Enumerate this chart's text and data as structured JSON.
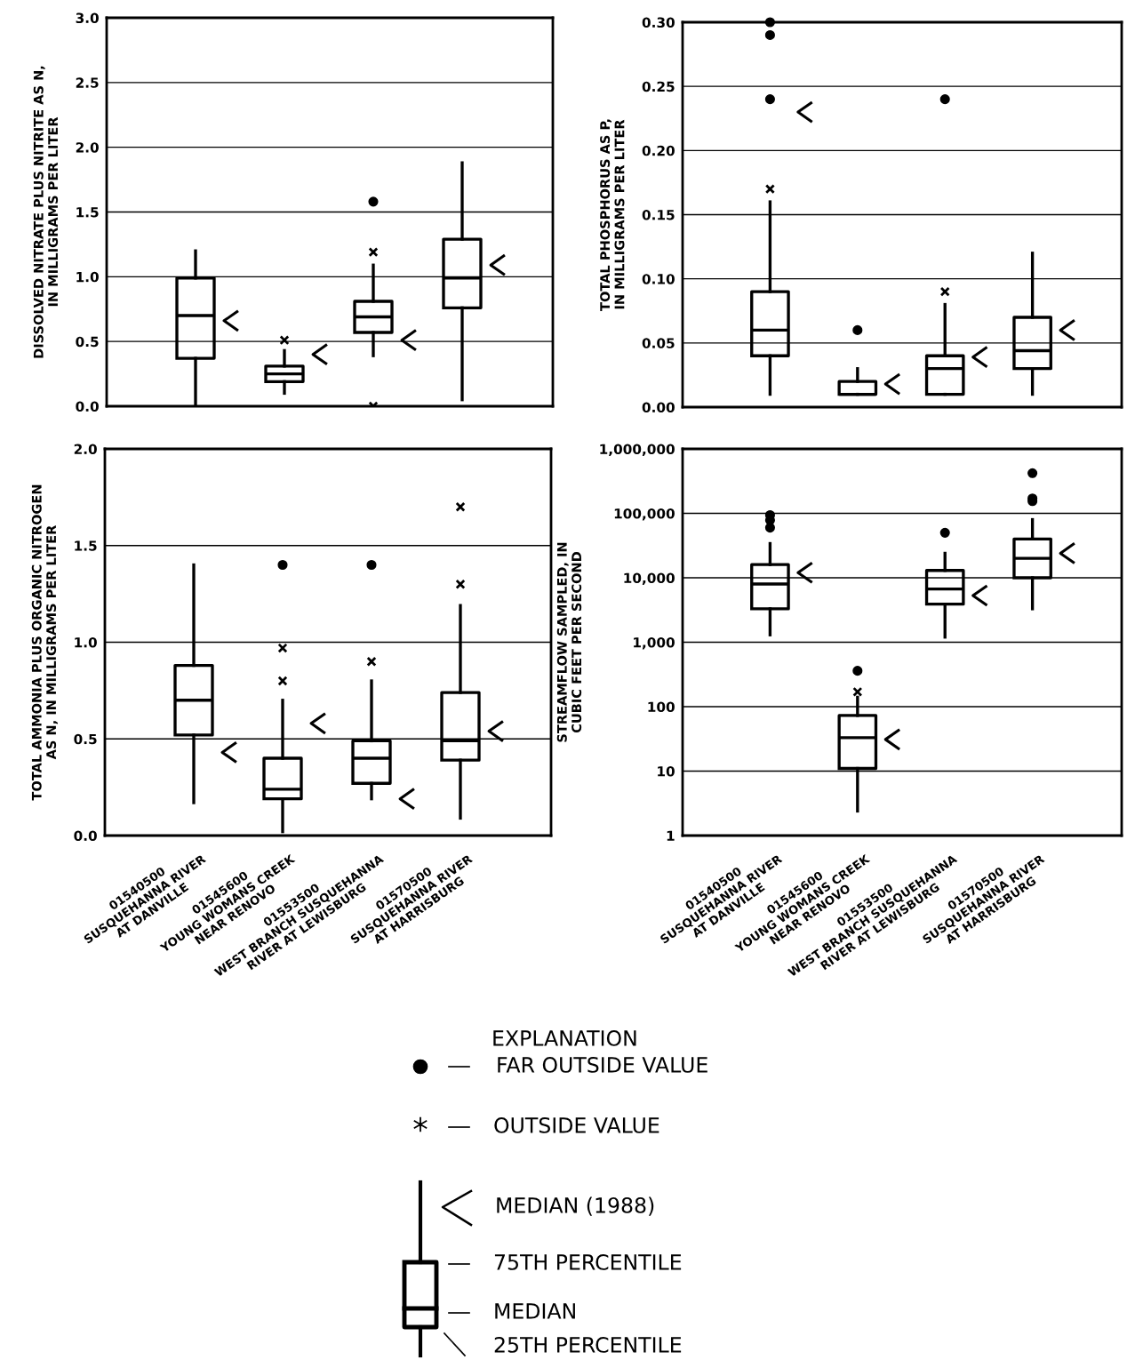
{
  "chart_data": [
    {
      "type": "box",
      "ylabel": "DISSOLVED NITRATE PLUS NITRITE AS N,\nIN MILLIGRAMS PER LITER",
      "categories": [
        "01540500\nSUSQUEHANNA RIVER\nAT DANVILLE",
        "01545600\nYOUNG WOMANS CREEK\nNEAR RENOVO",
        "01553500\nWEST BRANCH SUSQUEHANNA\nRIVER AT LEWISBURG",
        "01570500\nSUSQUEHANNA RIVER\nAT HARRISBURG"
      ],
      "tick_labels": "y",
      "grid": "y",
      "ylim": [
        0,
        3
      ],
      "yticks": [
        {
          "value": 0,
          "label": "0.0"
        },
        0.5,
        {
          "value": 1,
          "label": "1.0"
        },
        1.5,
        {
          "value": 2,
          "label": "2.0"
        },
        2.5,
        {
          "value": 3,
          "label": "3.0"
        }
      ],
      "boxes": [
        {
          "low": 0.0,
          "q1": 0.37,
          "median": 0.7,
          "q3": 0.99,
          "high": 1.2
        },
        {
          "low": 0.1,
          "q1": 0.19,
          "median": 0.25,
          "q3": 0.31,
          "high": 0.43,
          "outliers": [
            0.51
          ]
        },
        {
          "low": 0.39,
          "q1": 0.57,
          "median": 0.69,
          "q3": 0.81,
          "high": 1.09,
          "outliers": [
            1.19,
            0.0
          ]
        },
        {
          "low": 0.05,
          "q1": 0.76,
          "median": 0.99,
          "q3": 1.29,
          "high": 1.88
        }
      ],
      "series": [
        {
          "type": "scatter",
          "marker": "circle",
          "color": "#000000",
          "x": [
            "01553500\nWEST BRANCH SUSQUEHANNA\nRIVER AT LEWISBURG"
          ],
          "values": [
            1.58
          ]
        },
        {
          "type": "scatter",
          "marker": "cross",
          "color": "#000000",
          "x": [
            "01540500\nSUSQUEHANNA RIVER\nAT DANVILLE",
            "01545600\nYOUNG WOMANS CREEK\nNEAR RENOVO",
            "01553500\nWEST BRANCH SUSQUEHANNA\nRIVER AT LEWISBURG",
            "01570500\nSUSQUEHANNA RIVER\nAT HARRISBURG"
          ],
          "values": [
            0.66,
            0.4,
            0.51,
            1.09
          ]
        }
      ]
    },
    {
      "type": "box",
      "ylabel": "TOTAL PHOSPHORUS AS P,\nIN MILLIGRAMS PER LITER",
      "categories": [
        "01540500\nSUSQUEHANNA RIVER\nAT DANVILLE",
        "01545600\nYOUNG WOMANS CREEK\nNEAR RENOVO",
        "01553500\nWEST BRANCH SUSQUEHANNA\nRIVER AT LEWISBURG",
        "01570500\nSUSQUEHANNA RIVER\nAT HARRISBURG"
      ],
      "tick_labels": "y",
      "grid": "y",
      "ylim": [
        0,
        0.3
      ],
      "yticks": [
        {
          "value": 0,
          "label": "0.00"
        },
        0.05,
        {
          "value": 0.1,
          "label": "0.10"
        },
        0.15,
        {
          "value": 0.2,
          "label": "0.20"
        },
        0.25,
        {
          "value": 0.3,
          "label": "0.30"
        }
      ],
      "boxes": [
        {
          "low": 0.01,
          "q1": 0.04,
          "median": 0.06,
          "q3": 0.09,
          "high": 0.16,
          "outliers": [
            0.17
          ]
        },
        {
          "low": 0.01,
          "q1": 0.01,
          "median": 0.01,
          "q3": 0.02,
          "high": 0.03
        },
        {
          "low": 0.01,
          "q1": 0.01,
          "median": 0.03,
          "q3": 0.04,
          "high": 0.08,
          "outliers": [
            0.09
          ]
        },
        {
          "low": 0.01,
          "q1": 0.03,
          "median": 0.044,
          "q3": 0.07,
          "high": 0.12
        }
      ],
      "series": [
        {
          "type": "scatter",
          "marker": "circle",
          "color": "#000000",
          "x": [
            "01540500\nSUSQUEHANNA RIVER\nAT DANVILLE",
            "01540500\nSUSQUEHANNA RIVER\nAT DANVILLE",
            "01540500\nSUSQUEHANNA RIVER\nAT DANVILLE",
            "01545600\nYOUNG WOMANS CREEK\nNEAR RENOVO",
            "01553500\nWEST BRANCH SUSQUEHANNA\nRIVER AT LEWISBURG"
          ],
          "values": [
            0.3,
            0.29,
            0.24,
            0.06,
            0.24
          ]
        },
        {
          "type": "scatter",
          "marker": "cross",
          "color": "#000000",
          "x": [
            "01540500\nSUSQUEHANNA RIVER\nAT DANVILLE",
            "01545600\nYOUNG WOMANS CREEK\nNEAR RENOVO",
            "01553500\nWEST BRANCH SUSQUEHANNA\nRIVER AT LEWISBURG",
            "01570500\nSUSQUEHANNA RIVER\nAT HARRISBURG"
          ],
          "values": [
            0.23,
            0.018,
            0.039,
            0.06
          ]
        }
      ]
    },
    {
      "type": "box",
      "ylabel": "TOTAL AMMONIA PLUS ORGANIC NITROGEN\nAS N, IN MILLIGRAMS PER LITER",
      "categories": [
        "01540500\nSUSQUEHANNA RIVER\nAT DANVILLE",
        "01545600\nYOUNG WOMANS CREEK\nNEAR RENOVO",
        "01553500\nWEST BRANCH SUSQUEHANNA\nRIVER AT LEWISBURG",
        "01570500\nSUSQUEHANNA RIVER\nAT HARRISBURG"
      ],
      "grid": "y",
      "ylim": [
        0,
        2
      ],
      "yticks": [
        {
          "value": 0,
          "label": "0.0"
        },
        0.5,
        {
          "value": 1,
          "label": "1.0"
        },
        1.5,
        {
          "value": 2,
          "label": "2.0"
        }
      ],
      "boxes": [
        {
          "low": 0.17,
          "q1": 0.52,
          "median": 0.7,
          "q3": 0.88,
          "high": 1.4
        },
        {
          "low": 0.02,
          "q1": 0.19,
          "median": 0.24,
          "q3": 0.4,
          "high": 0.7,
          "outliers": [
            0.97,
            0.8
          ]
        },
        {
          "low": 0.19,
          "q1": 0.27,
          "median": 0.4,
          "q3": 0.49,
          "high": 0.8,
          "outliers": [
            0.9
          ]
        },
        {
          "low": 0.09,
          "q1": 0.39,
          "median": 0.49,
          "q3": 0.74,
          "high": 1.19,
          "outliers": [
            1.7,
            1.3
          ]
        }
      ],
      "series": [
        {
          "type": "scatter",
          "marker": "circle",
          "color": "#000000",
          "x": [
            "01545600\nYOUNG WOMANS CREEK\nNEAR RENOVO",
            "01553500\nWEST BRANCH SUSQUEHANNA\nRIVER AT LEWISBURG"
          ],
          "values": [
            1.4,
            1.4
          ]
        },
        {
          "type": "scatter",
          "marker": "cross",
          "color": "#000000",
          "x": [
            "01540500\nSUSQUEHANNA RIVER\nAT DANVILLE",
            "01545600\nYOUNG WOMANS CREEK\nNEAR RENOVO",
            "01553500\nWEST BRANCH SUSQUEHANNA\nRIVER AT LEWISBURG",
            "01570500\nSUSQUEHANNA RIVER\nAT HARRISBURG"
          ],
          "values": [
            0.43,
            0.58,
            0.19,
            0.54
          ]
        }
      ]
    },
    {
      "type": "box",
      "ylabel": "STREAMFLOW SAMPLED, IN\nCUBIC FEET PER SECOND",
      "categories": [
        "01540500\nSUSQUEHANNA RIVER\nAT DANVILLE",
        "01545600\nYOUNG WOMANS CREEK\nNEAR RENOVO",
        "01553500\nWEST BRANCH SUSQUEHANNA\nRIVER AT LEWISBURG",
        "01570500\nSUSQUEHANNA RIVER\nAT HARRISBURG"
      ],
      "grid": "y",
      "log": true,
      "ylim": [
        1,
        1000000
      ],
      "yticks": [
        1,
        10,
        100,
        {
          "value": 1000,
          "label": "1,000"
        },
        {
          "value": 10000,
          "label": "10,000"
        },
        {
          "value": 100000,
          "label": "100,000"
        },
        {
          "value": 1000000,
          "label": "1,000,000"
        }
      ],
      "boxes": [
        {
          "low": 1300,
          "q1": 3300,
          "median": 8000,
          "q3": 16000,
          "high": 34000
        },
        {
          "low": 2.4,
          "q1": 11,
          "median": 33,
          "q3": 73,
          "high": 140,
          "outliers": [
            170
          ]
        },
        {
          "low": 1200,
          "q1": 3900,
          "median": 6700,
          "q3": 13000,
          "high": 24000
        },
        {
          "low": 3300,
          "q1": 10000,
          "median": 20000,
          "q3": 40000,
          "high": 80000
        }
      ],
      "series": [
        {
          "type": "scatter",
          "marker": "circle",
          "color": "#000000",
          "x": [
            "01540500\nSUSQUEHANNA RIVER\nAT DANVILLE",
            "01540500\nSUSQUEHANNA RIVER\nAT DANVILLE",
            "01540500\nSUSQUEHANNA RIVER\nAT DANVILLE",
            "01545600\nYOUNG WOMANS CREEK\nNEAR RENOVO",
            "01553500\nWEST BRANCH SUSQUEHANNA\nRIVER AT LEWISBURG",
            "01570500\nSUSQUEHANNA RIVER\nAT HARRISBURG",
            "01570500\nSUSQUEHANNA RIVER\nAT HARRISBURG",
            "01570500\nSUSQUEHANNA RIVER\nAT HARRISBURG"
          ],
          "values": [
            94000,
            78000,
            60000,
            360,
            50000,
            420000,
            170000,
            155000
          ]
        },
        {
          "type": "scatter",
          "marker": "cross",
          "color": "#000000",
          "x": [
            "01540500\nSUSQUEHANNA RIVER\nAT DANVILLE",
            "01545600\nYOUNG WOMANS CREEK\nNEAR RENOVO",
            "01553500\nWEST BRANCH SUSQUEHANNA\nRIVER AT LEWISBURG",
            "01570500\nSUSQUEHANNA RIVER\nAT HARRISBURG"
          ],
          "values": [
            12000,
            31,
            5300,
            24000
          ]
        }
      ]
    },
    {
      "type": "other",
      "title": "EXPLANATION",
      "annotations": [
        "FAR OUTSIDE VALUE",
        "OUTSIDE VALUE",
        "MEDIAN (1988)",
        "75TH PERCENTILE",
        "MEDIAN",
        "25TH PERCENTILE"
      ]
    }
  ]
}
